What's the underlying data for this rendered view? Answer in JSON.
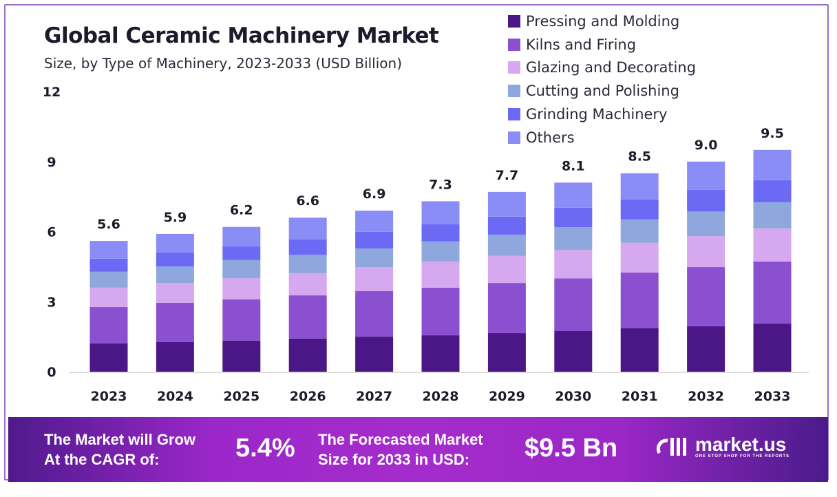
{
  "chart_data": {
    "type": "bar",
    "stacked": true,
    "title": "Global Ceramic Machinery Market",
    "subtitle": "Size, by Type of Machinery, 2023-2033 (USD Billion)",
    "categories": [
      "2023",
      "2024",
      "2025",
      "2026",
      "2027",
      "2028",
      "2029",
      "2030",
      "2031",
      "2032",
      "2033"
    ],
    "totals": [
      "5.6",
      "5.9",
      "6.2",
      "6.6",
      "6.9",
      "7.3",
      "7.7",
      "8.1",
      "8.5",
      "9.0",
      "9.5"
    ],
    "yticks": [
      0,
      3,
      6,
      9,
      12
    ],
    "ylim": [
      0,
      12
    ],
    "grid": false,
    "legend_position": "top-right",
    "series": [
      {
        "name": "Pressing and Molding",
        "color": "#4b1786",
        "values": [
          1.21,
          1.27,
          1.33,
          1.42,
          1.5,
          1.56,
          1.65,
          1.74,
          1.86,
          1.95,
          2.06
        ]
      },
      {
        "name": "Kilns and Firing",
        "color": "#8a50d0",
        "values": [
          1.56,
          1.68,
          1.77,
          1.85,
          1.95,
          2.04,
          2.15,
          2.26,
          2.39,
          2.53,
          2.66
        ]
      },
      {
        "name": "Glazing and Decorating",
        "color": "#d6a8ef",
        "values": [
          0.83,
          0.85,
          0.9,
          0.95,
          1.03,
          1.12,
          1.16,
          1.22,
          1.27,
          1.33,
          1.42
        ]
      },
      {
        "name": "Cutting and Polishing",
        "color": "#8ea7dc",
        "values": [
          0.68,
          0.71,
          0.78,
          0.79,
          0.8,
          0.86,
          0.91,
          0.97,
          1.0,
          1.06,
          1.12
        ]
      },
      {
        "name": "Grinding Machinery",
        "color": "#6c6af5",
        "values": [
          0.56,
          0.59,
          0.59,
          0.65,
          0.71,
          0.73,
          0.77,
          0.83,
          0.85,
          0.92,
          0.94
        ]
      },
      {
        "name": "Others",
        "color": "#8b8df6",
        "values": [
          0.76,
          0.8,
          0.83,
          0.94,
          0.91,
          0.99,
          1.06,
          1.08,
          1.13,
          1.21,
          1.3
        ]
      }
    ]
  },
  "banner": {
    "cagr_label_1": "The Market will Grow",
    "cagr_label_2": "At the CAGR of:",
    "cagr_value": "5.4%",
    "size_label_1": "The Forecasted Market",
    "size_label_2": "Size for 2033 in USD:",
    "size_value": "$9.5 Bn",
    "logo_name": "market.us",
    "logo_tagline": "ONE STOP SHOP FOR THE REPORTS"
  }
}
